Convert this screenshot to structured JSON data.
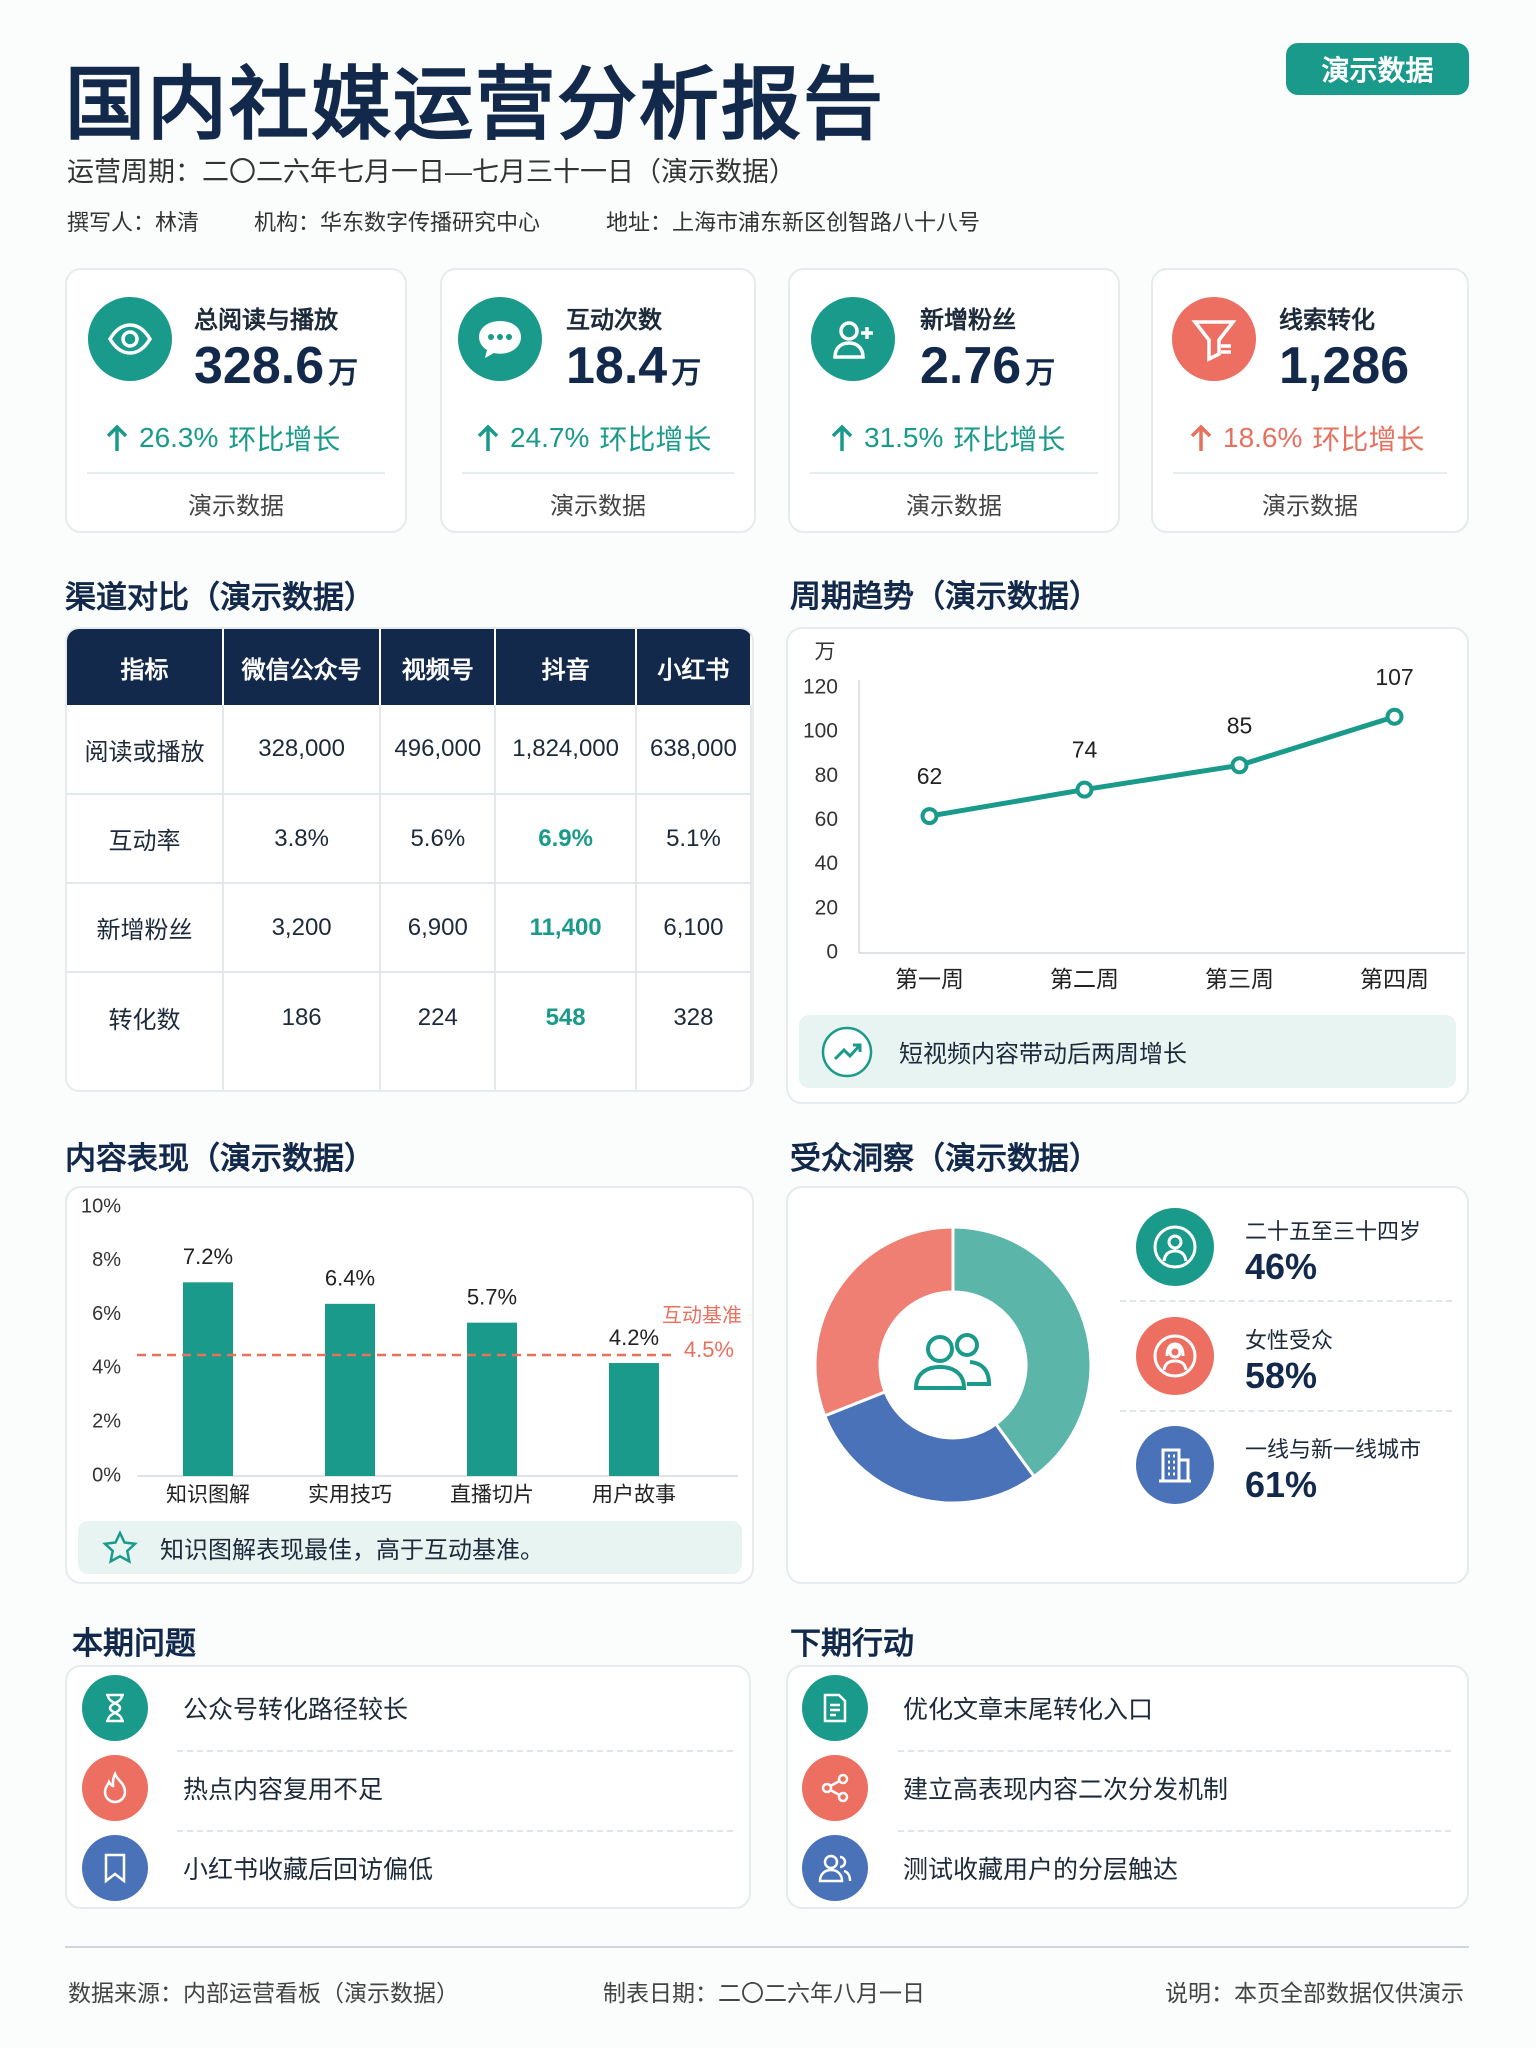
{
  "header": {
    "title": "国内社媒运营分析报告",
    "badge": "演示数据",
    "period": "运营周期：二〇二六年七月一日—七月三十一日（演示数据）",
    "author": "撰写人：林清",
    "org": "机构：华东数字传播研究中心",
    "address": "地址：上海市浦东新区创智路八十八号"
  },
  "kpis": [
    {
      "label": "总阅读与播放",
      "value": "328.6",
      "unit": "万",
      "change": "26.3%",
      "change_label": "环比增长",
      "note": "演示数据"
    },
    {
      "label": "互动次数",
      "value": "18.4",
      "unit": "万",
      "change": "24.7%",
      "change_label": "环比增长",
      "note": "演示数据"
    },
    {
      "label": "新增粉丝",
      "value": "2.76",
      "unit": "万",
      "change": "31.5%",
      "change_label": "环比增长",
      "note": "演示数据"
    },
    {
      "label": "线索转化",
      "value": "1,286",
      "change": "18.6%",
      "change_label": "环比增长",
      "note": "演示数据"
    }
  ],
  "channel": {
    "title": "渠道对比（演示数据）",
    "header": [
      "指标",
      "微信公众号",
      "视频号",
      "抖音",
      "小红书"
    ],
    "rows": [
      [
        "阅读或播放",
        "328,000",
        "496,000",
        "1,824,000",
        "638,000"
      ],
      [
        "互动率",
        "3.8%",
        "5.6%",
        "6.9%",
        "5.1%"
      ],
      [
        "新增粉丝",
        "3,200",
        "6,900",
        "11,400",
        "6,100"
      ],
      [
        "转化数",
        "186",
        "224",
        "548",
        "328"
      ]
    ]
  },
  "chart_data": [
    {
      "type": "line",
      "title": "周期趋势（演示数据）",
      "y_label": "万",
      "categories": [
        "第一周",
        "第二周",
        "第三周",
        "第四周"
      ],
      "values": [
        62,
        74,
        85,
        107
      ],
      "color": "#1a9a8a",
      "ylim": [
        0,
        120
      ],
      "yticks": [
        0,
        20,
        40,
        60,
        80,
        100,
        120
      ],
      "annotation": "短视频内容带动后两周增长"
    },
    {
      "type": "bar",
      "title": "内容表现（演示数据）",
      "categories": [
        "知识图解",
        "实用技巧",
        "直播切片",
        "用户故事"
      ],
      "values": [
        7.2,
        6.4,
        5.7,
        4.2
      ],
      "value_labels": [
        "7.2%",
        "6.4%",
        "5.7%",
        "4.2%"
      ],
      "color": "#1a9a8a",
      "ylim": [
        0,
        10
      ],
      "yticks": [
        {
          "value": 0,
          "label": "0%"
        },
        {
          "value": 2,
          "label": "2%"
        },
        {
          "value": 4,
          "label": "4%"
        },
        {
          "value": 6,
          "label": "6%"
        },
        {
          "value": 8,
          "label": "8%"
        },
        {
          "value": 10,
          "label": "10%"
        }
      ],
      "reference": {
        "value": 4.5,
        "value_label": "4.5%",
        "label": "互动基准",
        "color": "#e8705f"
      },
      "annotation": "知识图解表现最佳，高于互动基准。"
    },
    {
      "type": "donut",
      "title": "受众洞察（演示数据）",
      "values": [
        40,
        29,
        31
      ],
      "colors": [
        "#5bb5a8",
        "#4a72b8",
        "#ee7f72"
      ]
    }
  ],
  "audience": [
    {
      "label": "二十五至三十四岁",
      "value": "46%"
    },
    {
      "label": "女性受众",
      "value": "58%"
    },
    {
      "label": "一线与新一线城市",
      "value": "61%"
    }
  ],
  "issues": {
    "title": "本期问题",
    "items": [
      "公众号转化路径较长",
      "热点内容复用不足",
      "小红书收藏后回访偏低"
    ]
  },
  "actions": {
    "title": "下期行动",
    "items": [
      "优化文章末尾转化入口",
      "建立高表现内容二次分发机制",
      "测试收藏用户的分层触达"
    ]
  },
  "footer": {
    "source": "数据来源：内部运营看板（演示数据）",
    "date": "制表日期：二〇二六年八月一日",
    "note": "说明：本页全部数据仅供演示"
  }
}
